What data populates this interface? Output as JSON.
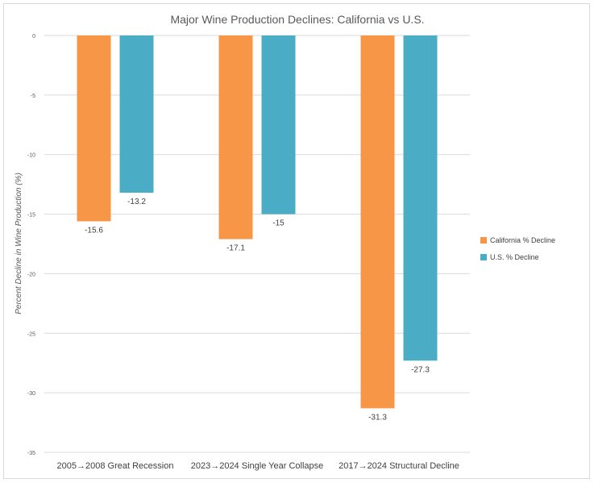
{
  "chart_data": {
    "type": "bar",
    "title": "Major Wine Production Declines: California vs U.S.",
    "xlabel": "",
    "ylabel": "Percent Decline in Wine Production (%)",
    "ylim": [
      -35,
      0
    ],
    "yticks": [
      0,
      -5,
      -10,
      -15,
      -20,
      -25,
      -30,
      -35
    ],
    "grid": true,
    "legend_position": "right",
    "categories": [
      "2005→2008 Great Recession",
      "2023→2024 Single Year Collapse",
      "2017→2024 Structural Decline"
    ],
    "series": [
      {
        "name": "California % Decline",
        "color": "#F79646",
        "values": [
          -15.6,
          -17.1,
          -31.3
        ]
      },
      {
        "name": "U.S. % Decline",
        "color": "#4BACC6",
        "values": [
          -13.2,
          -15,
          -27.3
        ]
      }
    ]
  }
}
